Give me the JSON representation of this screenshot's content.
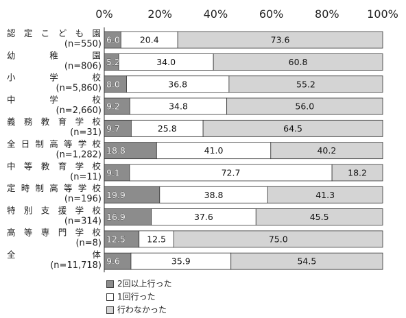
{
  "chart_data": {
    "type": "bar",
    "orientation": "horizontal",
    "stacked": true,
    "xlim": [
      0,
      100
    ],
    "x_ticks": [
      "0%",
      "20%",
      "40%",
      "60%",
      "80%",
      "100%"
    ],
    "categories": [
      {
        "name": "認定こども園",
        "n": "(n=550)"
      },
      {
        "name": "幼稚園",
        "n": "(n=806)"
      },
      {
        "name": "小学校",
        "n": "(n=5,860)"
      },
      {
        "name": "中学校",
        "n": "(n=2,660)"
      },
      {
        "name": "義務教育学校",
        "n": "(n=31)"
      },
      {
        "name": "全日制高等学校",
        "n": "(n=1,282)"
      },
      {
        "name": "中等教育学校",
        "n": "(n=11)"
      },
      {
        "name": "定時制高等学校",
        "n": "(n=196)"
      },
      {
        "name": "特別支援学校",
        "n": "(n=314)"
      },
      {
        "name": "高等専門学校",
        "n": "(n=8)"
      },
      {
        "name": "全体",
        "n": "(n=11,718)"
      }
    ],
    "series": [
      {
        "name": "2回以上行った",
        "color": "#8c8c8c",
        "values": [
          6.0,
          5.2,
          8.0,
          9.2,
          9.7,
          18.8,
          9.1,
          19.9,
          16.9,
          12.5,
          9.6
        ]
      },
      {
        "name": "1回行った",
        "color": "#ffffff",
        "values": [
          20.4,
          34.0,
          36.8,
          34.8,
          25.8,
          41.0,
          72.7,
          38.8,
          37.6,
          12.5,
          35.9
        ]
      },
      {
        "name": "行わなかった",
        "color": "#d4d4d4",
        "values": [
          73.6,
          60.8,
          55.2,
          56.0,
          64.5,
          40.2,
          18.2,
          41.3,
          45.5,
          75.0,
          54.5
        ]
      }
    ],
    "legend_position": "bottom-left"
  }
}
